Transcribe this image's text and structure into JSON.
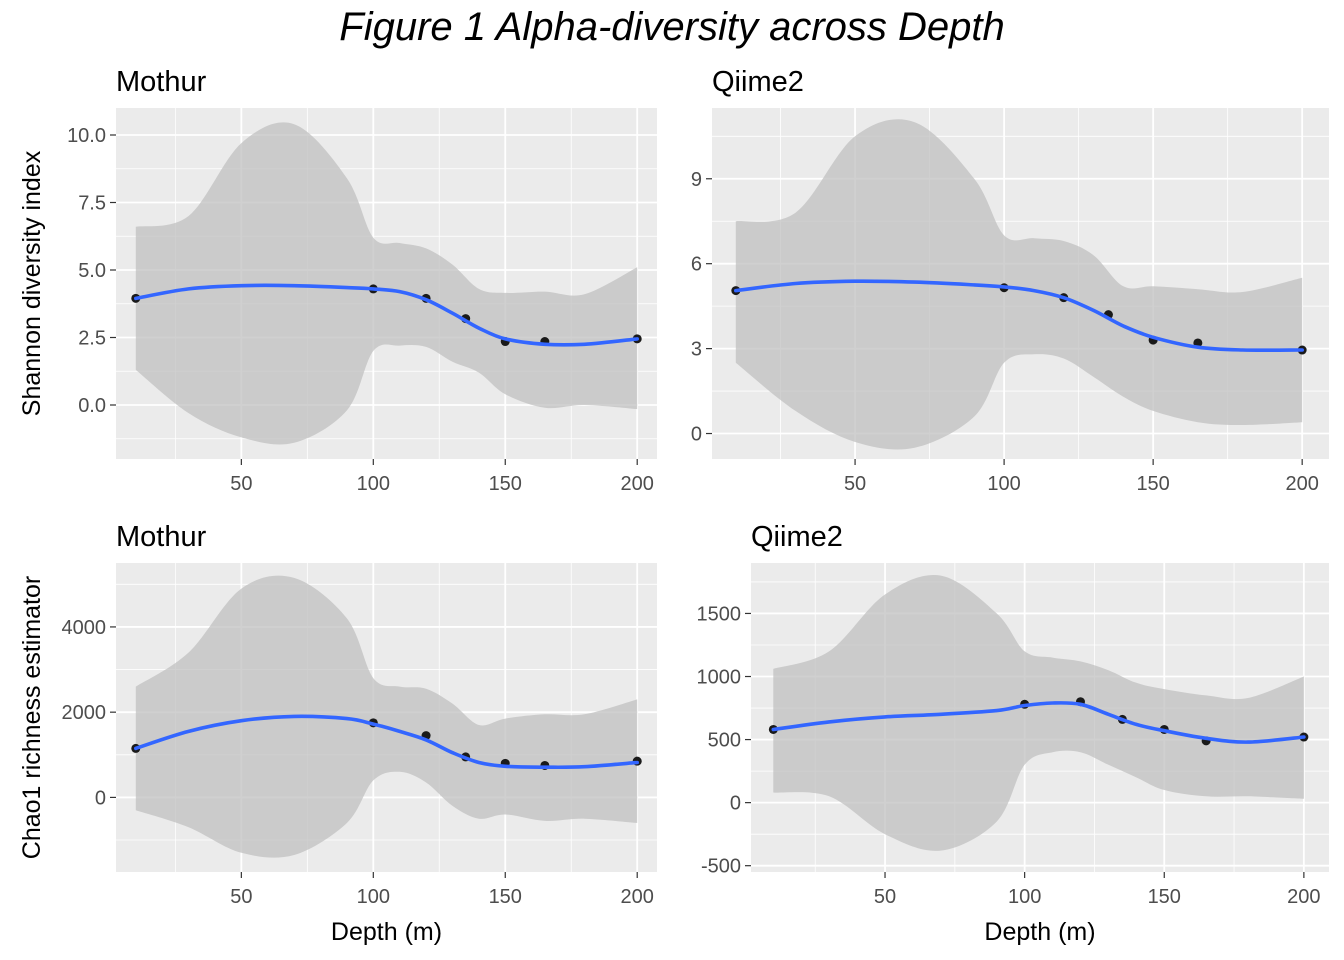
{
  "figure": {
    "title": "Figure 1 Alpha-diversity across Depth"
  },
  "colors": {
    "panel_background": "#ebebeb",
    "grid": "#ffffff",
    "ribbon": "#bebebe",
    "smooth_line": "#3366ff",
    "points": "#1a1a1a"
  },
  "chart_data": [
    {
      "type": "scatter",
      "title": "Mothur",
      "xlabel": "",
      "ylabel": "Shannon diversity index",
      "xlim": [
        2.5,
        207.5
      ],
      "ylim": [
        -2.0,
        11.0
      ],
      "x_ticks": [
        50,
        100,
        150,
        200
      ],
      "y_ticks": [
        0.0,
        2.5,
        5.0,
        7.5,
        10.0
      ],
      "y_tick_labels": [
        "0.0",
        "2.5",
        "5.0",
        "7.5",
        "10.0"
      ],
      "grid": true,
      "points": {
        "x": [
          10,
          100,
          120,
          135,
          150,
          165,
          200
        ],
        "y": [
          3.95,
          4.3,
          3.95,
          3.2,
          2.35,
          2.35,
          2.45
        ]
      },
      "smooth": {
        "x": [
          10,
          30,
          50,
          70,
          90,
          100,
          110,
          120,
          130,
          140,
          150,
          165,
          180,
          200
        ],
        "y": [
          3.95,
          4.3,
          4.42,
          4.42,
          4.35,
          4.3,
          4.2,
          3.9,
          3.4,
          2.85,
          2.45,
          2.25,
          2.25,
          2.45
        ],
        "lower": [
          1.3,
          -0.3,
          -1.2,
          -1.4,
          -0.2,
          2.0,
          2.2,
          2.15,
          1.6,
          1.2,
          0.4,
          -0.1,
          0.0,
          -0.15
        ],
        "upper": [
          6.6,
          7.0,
          9.7,
          10.4,
          8.4,
          6.2,
          6.0,
          5.8,
          5.2,
          4.3,
          4.15,
          4.2,
          4.1,
          5.1
        ]
      }
    },
    {
      "type": "scatter",
      "title": "Qiime2",
      "xlabel": "",
      "ylabel": "",
      "xlim": [
        2.0,
        209.0
      ],
      "ylim": [
        -0.9,
        11.5
      ],
      "x_ticks": [
        50,
        100,
        150,
        200
      ],
      "y_ticks": [
        0,
        3,
        6,
        9
      ],
      "y_tick_labels": [
        "0",
        "3",
        "6",
        "9"
      ],
      "grid": true,
      "points": {
        "x": [
          10,
          100,
          120,
          135,
          150,
          165,
          200
        ],
        "y": [
          5.05,
          5.15,
          4.8,
          4.2,
          3.3,
          3.2,
          2.95
        ]
      },
      "smooth": {
        "x": [
          10,
          30,
          50,
          70,
          90,
          100,
          110,
          120,
          130,
          140,
          150,
          165,
          180,
          200
        ],
        "y": [
          5.05,
          5.3,
          5.38,
          5.35,
          5.25,
          5.18,
          5.05,
          4.8,
          4.35,
          3.8,
          3.4,
          3.05,
          2.95,
          2.95
        ],
        "lower": [
          2.5,
          0.8,
          -0.3,
          -0.5,
          0.6,
          2.5,
          2.8,
          2.65,
          2.0,
          1.3,
          0.8,
          0.4,
          0.3,
          0.4
        ],
        "upper": [
          7.5,
          7.8,
          10.5,
          11.0,
          9.0,
          7.0,
          6.9,
          6.8,
          6.3,
          5.2,
          5.2,
          5.1,
          5.0,
          5.5
        ]
      }
    },
    {
      "type": "scatter",
      "title": "Mothur",
      "xlabel": "Depth (m)",
      "ylabel": "Chao1 richness estimator",
      "xlim": [
        2.5,
        207.5
      ],
      "ylim": [
        -1750,
        5500
      ],
      "x_ticks": [
        50,
        100,
        150,
        200
      ],
      "y_ticks": [
        0,
        2000,
        4000
      ],
      "y_tick_labels": [
        "0",
        "2000",
        "4000"
      ],
      "grid": true,
      "points": {
        "x": [
          10,
          100,
          120,
          135,
          150,
          165,
          200
        ],
        "y": [
          1150,
          1750,
          1450,
          950,
          800,
          750,
          850
        ]
      },
      "smooth": {
        "x": [
          10,
          30,
          50,
          70,
          90,
          100,
          110,
          120,
          130,
          140,
          150,
          165,
          180,
          200
        ],
        "y": [
          1150,
          1550,
          1800,
          1900,
          1850,
          1720,
          1550,
          1350,
          1050,
          820,
          730,
          710,
          720,
          820
        ],
        "lower": [
          -300,
          -700,
          -1300,
          -1350,
          -600,
          400,
          600,
          350,
          -200,
          -500,
          -400,
          -550,
          -500,
          -600
        ],
        "upper": [
          2600,
          3400,
          4900,
          5150,
          4200,
          2800,
          2600,
          2550,
          2200,
          1700,
          1850,
          1950,
          1950,
          2300
        ]
      }
    },
    {
      "type": "scatter",
      "title": "Qiime2",
      "xlabel": "Depth (m)",
      "ylabel": "",
      "xlim": [
        2.0,
        209.0
      ],
      "ylim": [
        -550,
        1900
      ],
      "x_ticks": [
        50,
        100,
        150,
        200
      ],
      "y_ticks": [
        -500,
        0,
        500,
        1000,
        1500
      ],
      "y_tick_labels": [
        "-500",
        "0",
        "500",
        "1000",
        "1500"
      ],
      "grid": true,
      "points": {
        "x": [
          10,
          100,
          120,
          135,
          150,
          165,
          200
        ],
        "y": [
          580,
          780,
          800,
          660,
          580,
          490,
          520
        ]
      },
      "smooth": {
        "x": [
          10,
          30,
          50,
          70,
          90,
          100,
          110,
          120,
          130,
          140,
          150,
          165,
          180,
          200
        ],
        "y": [
          580,
          640,
          680,
          700,
          730,
          770,
          790,
          780,
          700,
          620,
          570,
          510,
          480,
          520
        ],
        "lower": [
          80,
          50,
          -250,
          -380,
          -150,
          300,
          400,
          400,
          300,
          200,
          100,
          50,
          50,
          30
        ],
        "upper": [
          1060,
          1200,
          1650,
          1800,
          1500,
          1200,
          1150,
          1120,
          1050,
          950,
          900,
          850,
          830,
          1000
        ]
      }
    }
  ]
}
